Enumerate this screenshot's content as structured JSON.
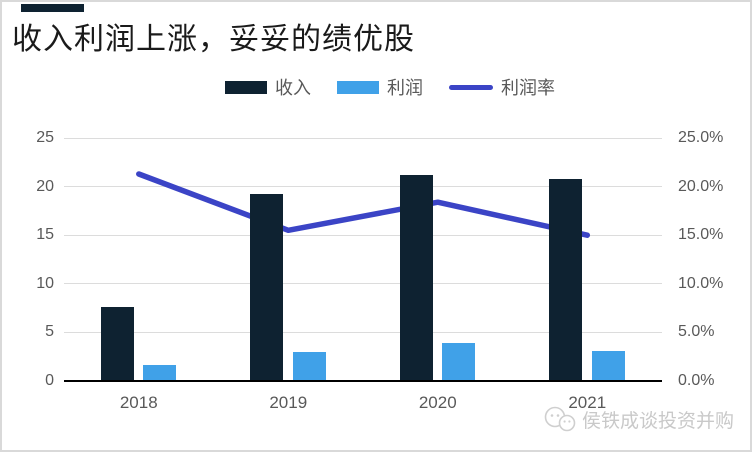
{
  "title": "收入利润上涨，妥妥的绩优股",
  "accent_color": "#0e2231",
  "legend": [
    {
      "label": "收入",
      "marker": "box",
      "color": "#0e2231"
    },
    {
      "label": "利润",
      "marker": "box",
      "color": "#40a1e8"
    },
    {
      "label": "利润率",
      "marker": "line",
      "color": "#3b44c6"
    }
  ],
  "watermark": {
    "icon": "wechat-icon",
    "text": "侯铁成谈投资并购",
    "color": "#c9c9c9"
  },
  "chart_data": {
    "type": "bar",
    "subtype": "bar+line combo, dual axis",
    "categories": [
      "2018",
      "2019",
      "2020",
      "2021"
    ],
    "series": [
      {
        "name": "收入",
        "type": "bar",
        "axis": "left",
        "color": "#0e2231",
        "values": [
          7.6,
          19.2,
          21.2,
          20.8
        ]
      },
      {
        "name": "利润",
        "type": "bar",
        "axis": "left",
        "color": "#40a1e8",
        "values": [
          1.6,
          3.0,
          3.9,
          3.1
        ]
      },
      {
        "name": "利润率",
        "type": "line",
        "axis": "right",
        "color": "#3b44c6",
        "values": [
          21.3,
          15.5,
          18.4,
          15.0
        ],
        "unit": "%"
      }
    ],
    "left_axis": {
      "min": 0,
      "max": 25,
      "step": 5,
      "ticks": [
        "0",
        "5",
        "10",
        "15",
        "20",
        "25"
      ]
    },
    "right_axis": {
      "min": 0,
      "max": 25,
      "step": 5,
      "ticks": [
        "0.0%",
        "5.0%",
        "10.0%",
        "15.0%",
        "20.0%",
        "25.0%"
      ]
    },
    "grid": true,
    "legend_position": "top",
    "line_behind_bars": true
  }
}
